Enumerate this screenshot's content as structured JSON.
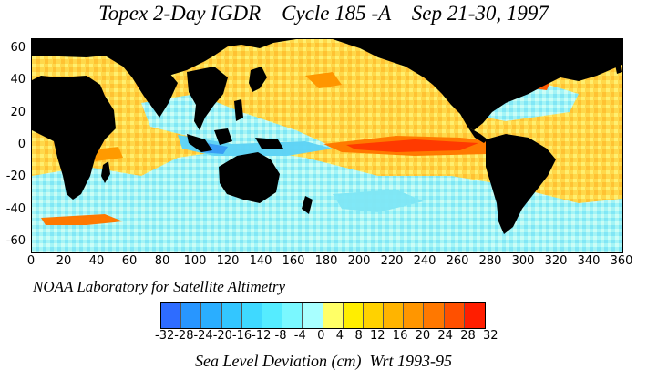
{
  "title": "Topex 2-Day IGDR    Cycle 185 -A    Sep 21-30, 1997",
  "credit": "NOAA Laboratory for Satellite Altimetry",
  "footer": "Sea Level Deviation (cm)  Wrt 1993-95",
  "axes": {
    "y_ticks": [
      "60",
      "40",
      "20",
      "0",
      "-20",
      "-40",
      "-60"
    ],
    "x_ticks": [
      "0",
      "20",
      "40",
      "60",
      "80",
      "100",
      "120",
      "140",
      "160",
      "180",
      "200",
      "220",
      "240",
      "260",
      "280",
      "300",
      "320",
      "340",
      "360"
    ],
    "lat_range": [
      -66,
      66
    ],
    "lon_range": [
      0,
      360
    ]
  },
  "colorbar": {
    "labels": "-32-28-24-20-16-12 -8  -4   0   4   8  12  16  20  24  28  32",
    "colors": [
      "#2e6cff",
      "#2896ff",
      "#2aaeff",
      "#33c6ff",
      "#3fd9ff",
      "#55ecff",
      "#7af8ff",
      "#a8ffff",
      "#ffff66",
      "#ffee00",
      "#ffd200",
      "#ffb400",
      "#ff9600",
      "#ff7800",
      "#ff5000",
      "#ff1e00"
    ]
  },
  "colors": {
    "land": "#000000",
    "background": "#ffffff"
  }
}
